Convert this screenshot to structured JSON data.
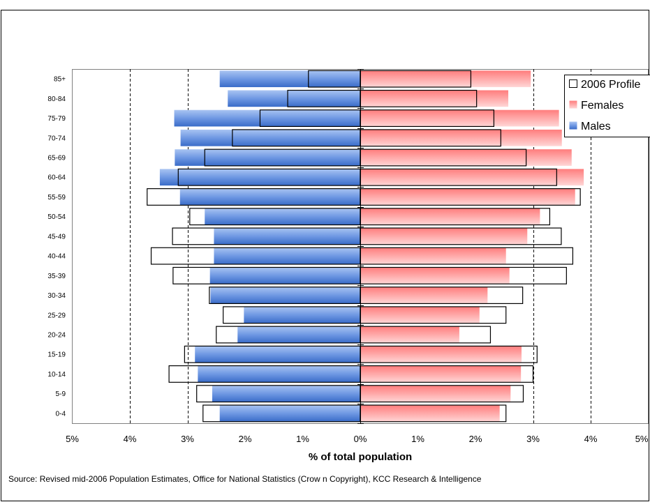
{
  "chart_data": {
    "type": "bar",
    "title": "",
    "xlabel": "% of total population",
    "ylabel": "",
    "categories": [
      "0-4",
      "5-9",
      "10-14",
      "15-19",
      "20-24",
      "25-29",
      "30-34",
      "35-39",
      "40-44",
      "45-49",
      "50-54",
      "55-59",
      "60-64",
      "65-69",
      "70-74",
      "75-79",
      "80-84",
      "85+"
    ],
    "xlim": [
      -5,
      5
    ],
    "x_ticks": [
      -5,
      -4,
      -3,
      -2,
      -1,
      0,
      1,
      2,
      3,
      4,
      5
    ],
    "x_tick_labels": [
      "5%",
      "4%",
      "3%",
      "2%",
      "1%",
      "0%",
      "1%",
      "2%",
      "3%",
      "4%",
      "5%"
    ],
    "grid": "vertical dashed at ±3% and ±4%",
    "legend_position": "top-right",
    "series": [
      {
        "name": "Males",
        "side": "left",
        "color": "#4f81d9",
        "values": [
          2.44,
          2.57,
          2.82,
          2.87,
          2.13,
          2.02,
          2.6,
          2.61,
          2.54,
          2.54,
          2.7,
          3.13,
          3.48,
          3.22,
          3.12,
          3.23,
          2.3,
          2.44
        ]
      },
      {
        "name": "Females",
        "side": "right",
        "color": "#ff8a8a",
        "values": [
          2.42,
          2.61,
          2.79,
          2.8,
          1.72,
          2.07,
          2.21,
          2.59,
          2.53,
          2.9,
          3.12,
          3.73,
          3.88,
          3.67,
          3.5,
          3.45,
          2.57,
          2.96
        ]
      },
      {
        "name": "2006 Profile",
        "type": "outline",
        "male_values": [
          2.73,
          2.84,
          3.32,
          3.05,
          2.5,
          2.38,
          2.62,
          3.25,
          3.63,
          3.26,
          2.96,
          3.7,
          3.16,
          2.7,
          2.22,
          1.74,
          1.26,
          0.9
        ],
        "female_values": [
          2.53,
          2.83,
          3.0,
          3.07,
          2.26,
          2.53,
          2.82,
          3.58,
          3.69,
          3.49,
          3.29,
          3.82,
          3.41,
          2.88,
          2.44,
          2.32,
          2.02,
          1.92
        ]
      }
    ],
    "source": "Source: Revised mid-2006 Population Estimates, Office for National Statistics (Crow n Copyright), KCC Research & Intelligence"
  },
  "legend": {
    "items": [
      {
        "label": "2006 Profile",
        "icon": "outline-square-icon"
      },
      {
        "label": "Females",
        "icon": "pink-gradient-square-icon"
      },
      {
        "label": "Males",
        "icon": "blue-gradient-square-icon"
      }
    ]
  }
}
